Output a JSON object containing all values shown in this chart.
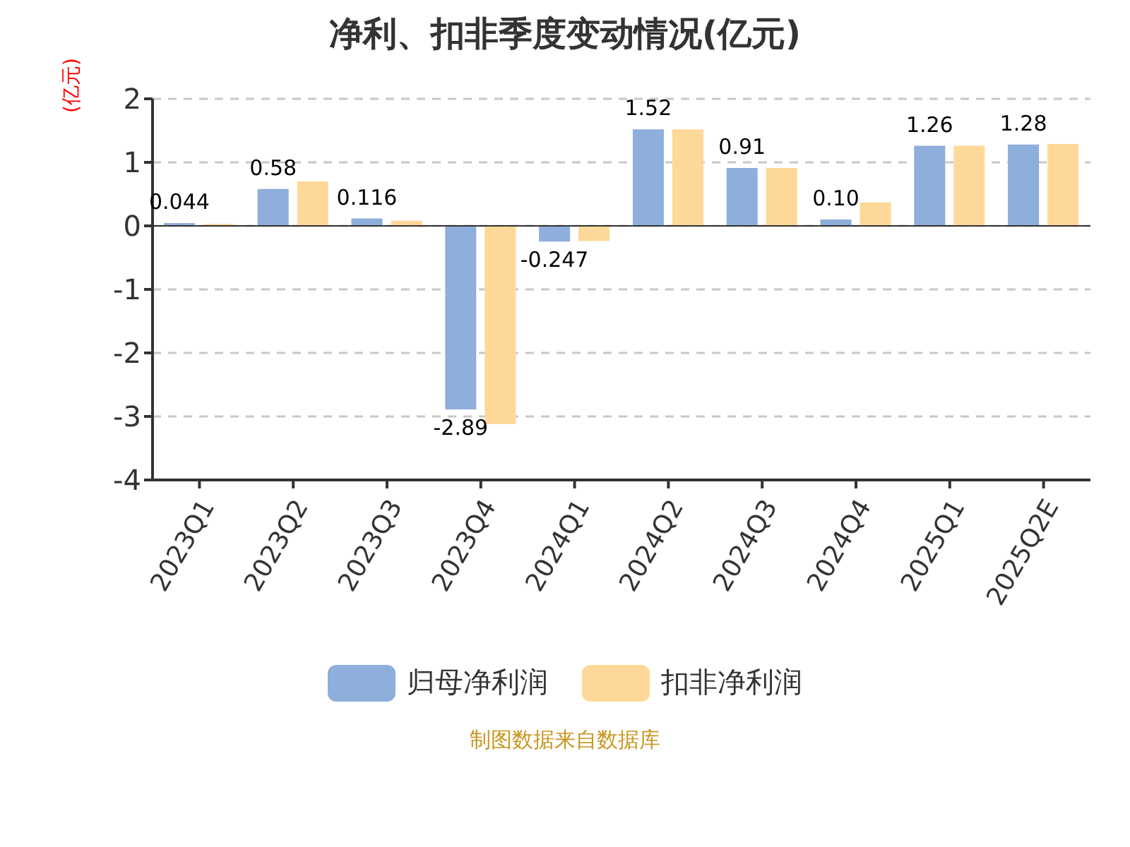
{
  "chart_data": {
    "type": "bar",
    "title": "净利、扣非季度变动情况(亿元)",
    "ylabel": "(亿元)",
    "categories": [
      "2023Q1",
      "2023Q2",
      "2023Q3",
      "2023Q4",
      "2024Q1",
      "2024Q2",
      "2024Q3",
      "2024Q4",
      "2025Q1",
      "2025Q2E"
    ],
    "series": [
      {
        "name": "归母净利润",
        "color": "#8eaedb",
        "values": [
          0.044,
          0.58,
          0.116,
          -2.89,
          -0.247,
          1.52,
          0.91,
          0.1,
          1.26,
          1.28
        ],
        "value_labels": [
          "0.044",
          "0.58",
          "0.116",
          "-2.89",
          "-0.247",
          "1.52",
          "0.91",
          "0.10",
          "1.26",
          "1.28"
        ]
      },
      {
        "name": "扣非净利润",
        "color": "#fed898",
        "values": [
          0.03,
          0.7,
          0.08,
          -3.12,
          -0.24,
          1.52,
          0.91,
          0.37,
          1.26,
          1.29
        ]
      }
    ],
    "ylim": [
      -4,
      2
    ],
    "yticks": [
      -4,
      -3,
      -2,
      -1,
      0,
      1,
      2
    ],
    "grid": "y",
    "legend": "bottom",
    "annotations": [
      "制图数据来自数据库"
    ]
  }
}
